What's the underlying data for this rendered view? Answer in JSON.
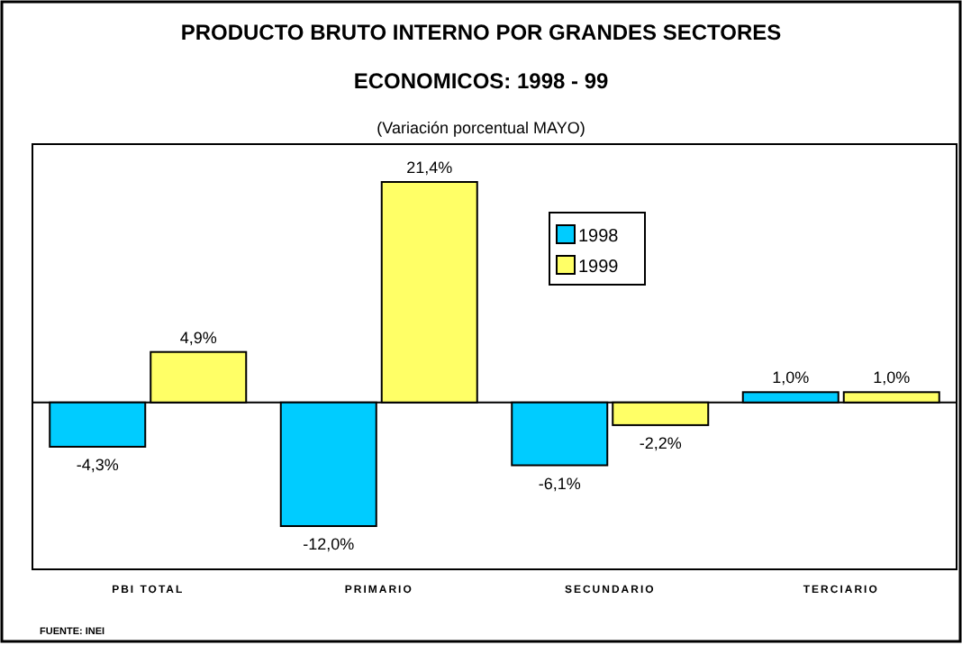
{
  "chart_data": {
    "type": "bar",
    "title": "PRODUCTO BRUTO INTERNO POR GRANDES SECTORES",
    "subtitle": "ECONOMICOS: 1998 - 99",
    "annotations": [
      "(Variación porcentual MAYO)",
      "FUENTE: INEI"
    ],
    "categories": [
      "PBI TOTAL",
      "PRIMARIO",
      "SECUNDARIO",
      "TERCIARIO"
    ],
    "series": [
      {
        "name": "1998",
        "color": "#00ccff",
        "values": [
          -4.3,
          -12.0,
          -6.1,
          1.0
        ],
        "value_labels": [
          "-4,3%",
          "-12,0%",
          "-6,1%",
          "1,0%"
        ]
      },
      {
        "name": "1999",
        "color": "#ffff66",
        "values": [
          4.9,
          21.4,
          -2.2,
          1.0
        ],
        "value_labels": [
          "4,9%",
          "21,4%",
          "-2,2%",
          "1,0%"
        ]
      }
    ],
    "legend": "top"
  }
}
